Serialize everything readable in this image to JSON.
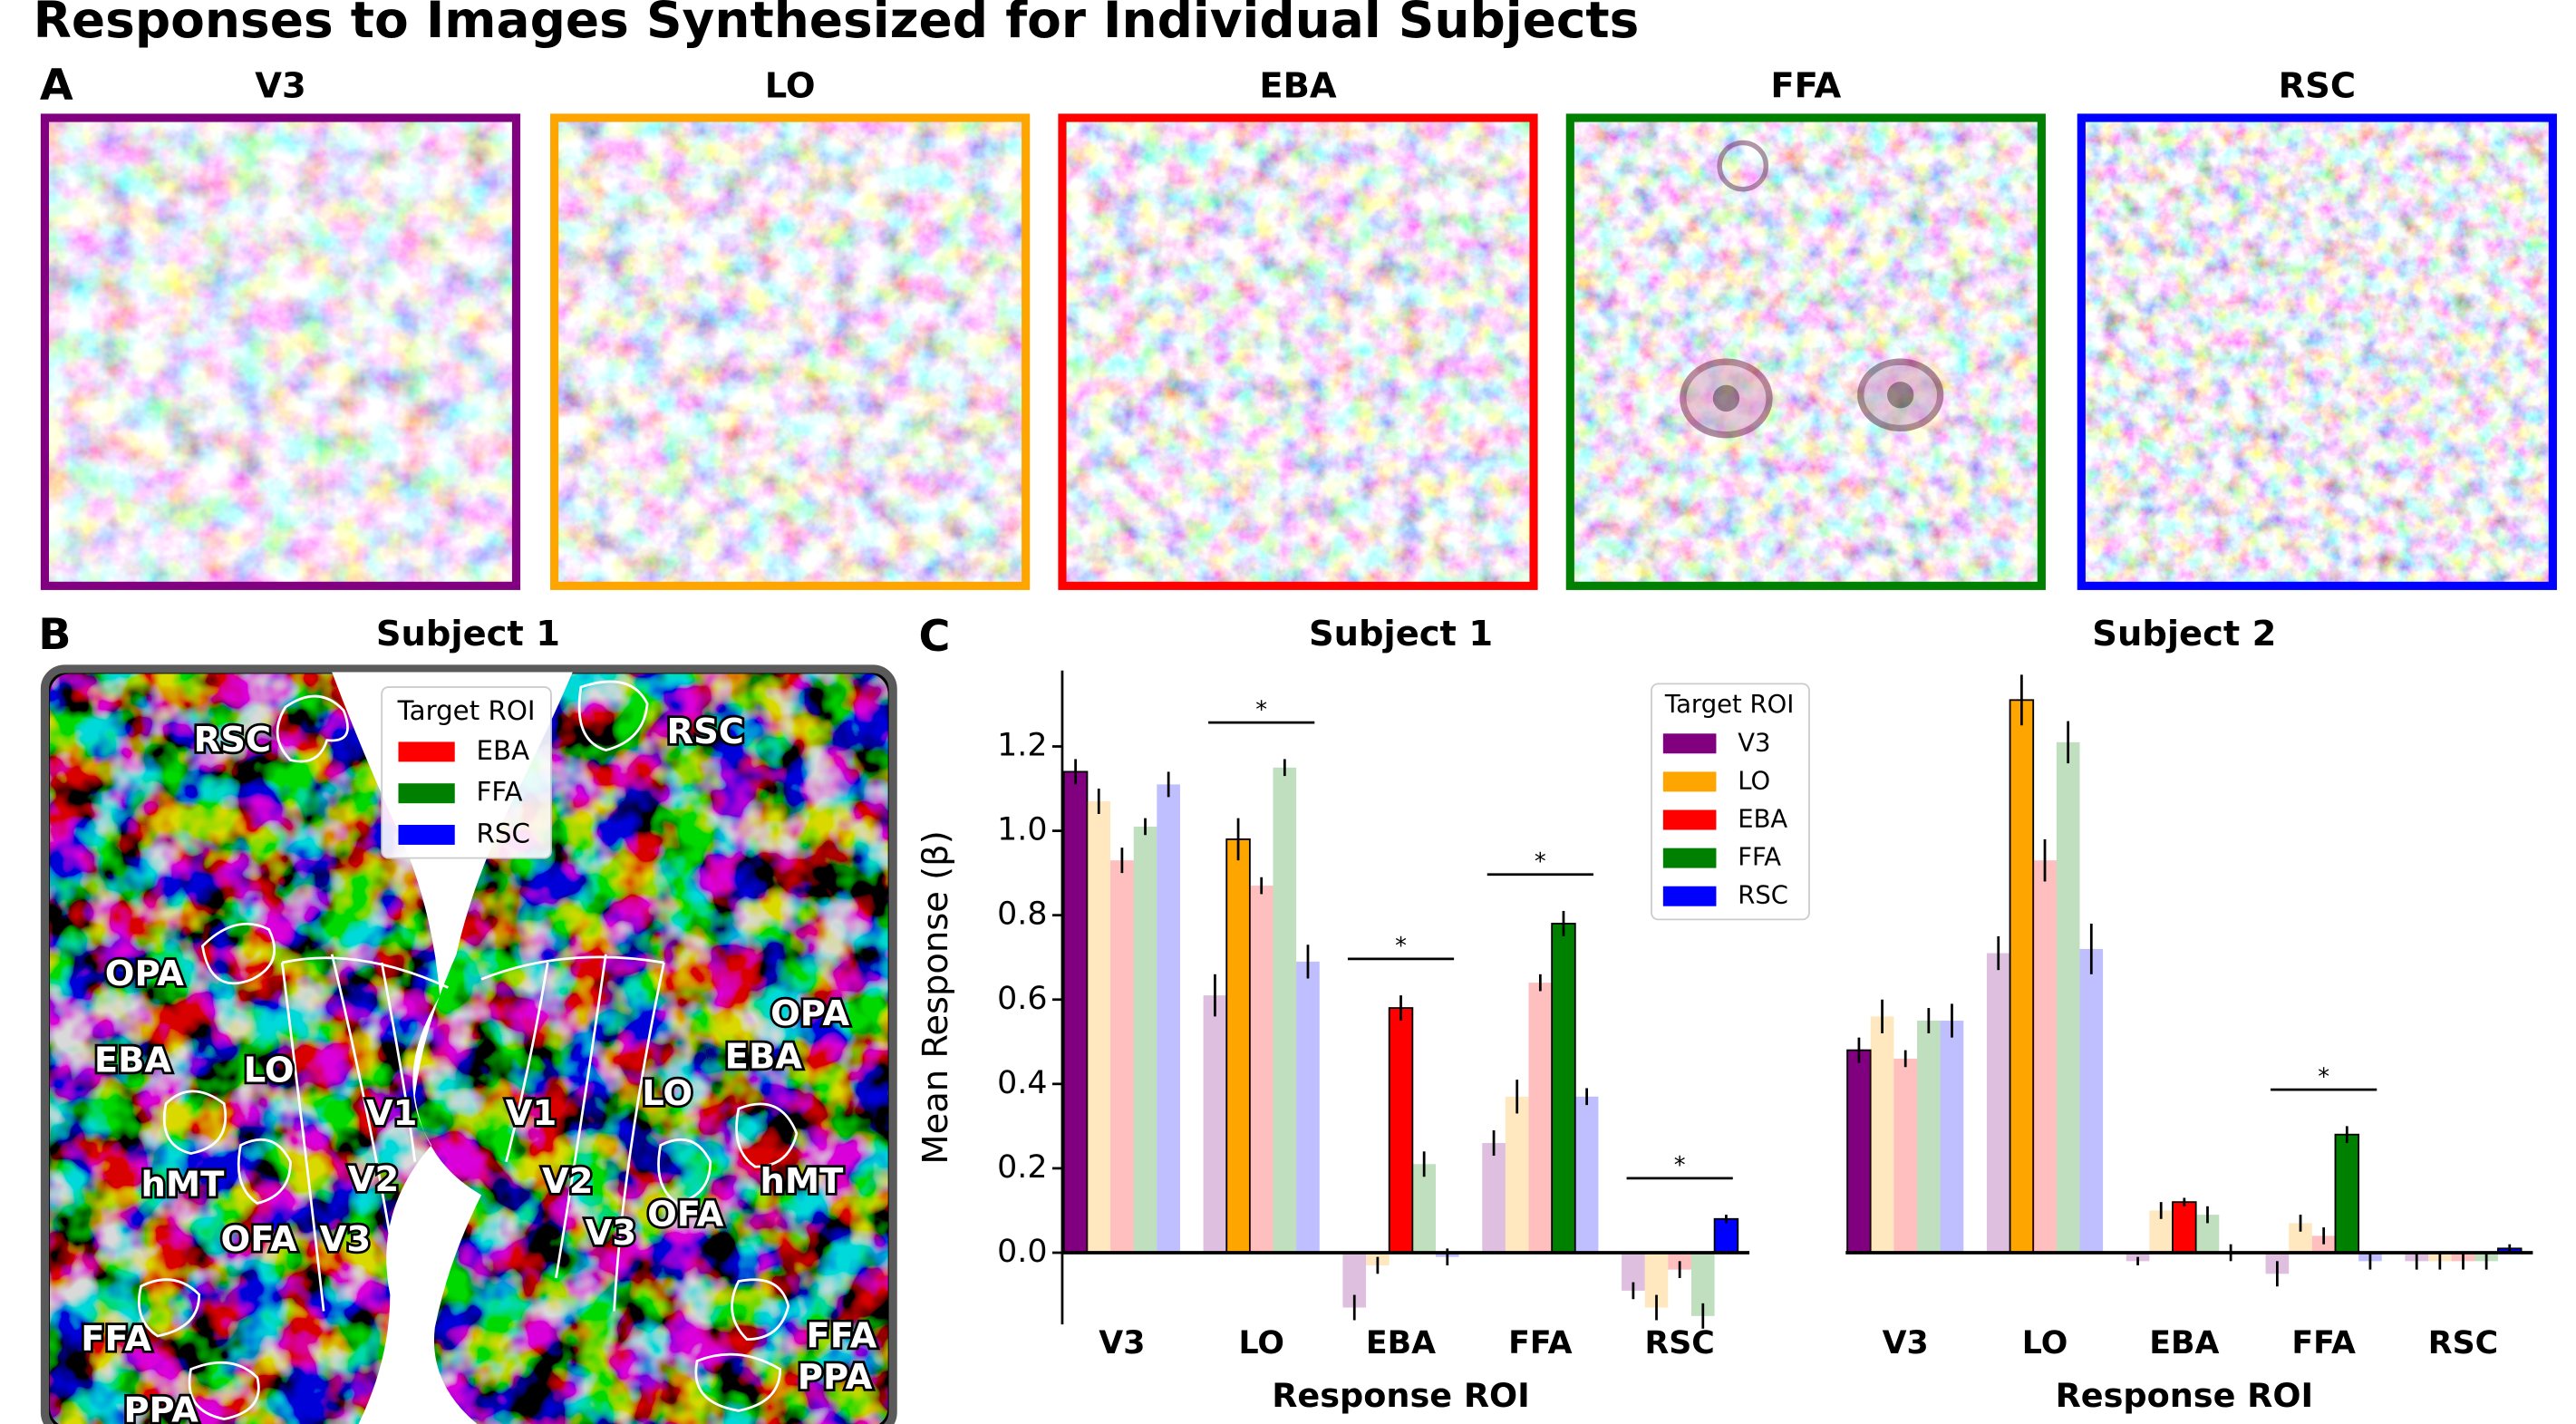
{
  "title": "Responses to Images Synthesized for Individual Subjects",
  "panel_a": {
    "label": "A",
    "images": [
      {
        "title": "V3",
        "color": "#800080"
      },
      {
        "title": "LO",
        "color": "#ffa500"
      },
      {
        "title": "EBA",
        "color": "#ff0000"
      },
      {
        "title": "FFA",
        "color": "#008000"
      },
      {
        "title": "RSC",
        "color": "#0000ff"
      }
    ]
  },
  "panel_b": {
    "label": "B",
    "title": "Subject 1",
    "legend_title": "Target ROI",
    "legend": [
      {
        "name": "EBA",
        "color": "#ff0000"
      },
      {
        "name": "FFA",
        "color": "#008000"
      },
      {
        "name": "RSC",
        "color": "#0000ff"
      }
    ],
    "regions": [
      "RSC",
      "OPA",
      "EBA",
      "LO",
      "hMT",
      "OFA",
      "V1",
      "V2",
      "V3",
      "FFA",
      "PPA",
      "RSC",
      "OPA",
      "EBA",
      "LO",
      "hMT",
      "OFA",
      "V1",
      "V2",
      "V3",
      "FFA",
      "PPA"
    ]
  },
  "panel_c_label": "C",
  "chart_data": [
    {
      "type": "bar",
      "title": "Subject 1",
      "x_label": "Response ROI",
      "y_label": "Mean Response (β)",
      "categories": [
        "V3",
        "LO",
        "EBA",
        "FFA",
        "RSC"
      ],
      "series": [
        {
          "name": "V3",
          "color": "#800080",
          "values": [
            1.14,
            0.61,
            -0.13,
            0.26,
            -0.09
          ],
          "errors": [
            0.03,
            0.05,
            0.03,
            0.03,
            0.02
          ]
        },
        {
          "name": "LO",
          "color": "#ffa500",
          "values": [
            1.07,
            0.98,
            -0.03,
            0.37,
            -0.13
          ],
          "errors": [
            0.03,
            0.05,
            0.02,
            0.04,
            0.03
          ]
        },
        {
          "name": "EBA",
          "color": "#ff0000",
          "values": [
            0.93,
            0.87,
            0.58,
            0.64,
            -0.04
          ],
          "errors": [
            0.03,
            0.02,
            0.03,
            0.02,
            0.02
          ]
        },
        {
          "name": "FFA",
          "color": "#008000",
          "values": [
            1.01,
            1.15,
            0.21,
            0.78,
            -0.15
          ],
          "errors": [
            0.02,
            0.02,
            0.03,
            0.03,
            0.03
          ]
        },
        {
          "name": "RSC",
          "color": "#0000ff",
          "values": [
            1.11,
            0.69,
            -0.01,
            0.37,
            0.08
          ],
          "errors": [
            0.03,
            0.04,
            0.02,
            0.02,
            0.01
          ]
        }
      ],
      "ylim": [
        -0.17,
        1.38
      ],
      "yticks": [
        {
          "value": 0,
          "label": "0.0"
        },
        0.2,
        0.4,
        0.6,
        0.8,
        {
          "value": 1,
          "label": "1.0"
        },
        1.2
      ],
      "legend": "upper right",
      "legend_title": "Target ROI",
      "annotations": [
        {
          "category": "LO",
          "text": "*"
        },
        {
          "category": "EBA",
          "text": "*"
        },
        {
          "category": "FFA",
          "text": "*"
        },
        {
          "category": "RSC",
          "text": "*"
        }
      ]
    },
    {
      "type": "bar",
      "title": "Subject 2",
      "x_label": "Response ROI",
      "categories": [
        "V3",
        "LO",
        "EBA",
        "FFA",
        "RSC"
      ],
      "series": [
        {
          "name": "V3",
          "color": "#800080",
          "values": [
            0.48,
            0.71,
            -0.02,
            -0.05,
            -0.02
          ],
          "errors": [
            0.03,
            0.04,
            0.01,
            0.03,
            0.02
          ]
        },
        {
          "name": "LO",
          "color": "#ffa500",
          "values": [
            0.56,
            1.31,
            0.1,
            0.07,
            -0.02
          ],
          "errors": [
            0.04,
            0.06,
            0.02,
            0.02,
            0.02
          ]
        },
        {
          "name": "EBA",
          "color": "#ff0000",
          "values": [
            0.46,
            0.93,
            0.12,
            0.04,
            -0.02
          ],
          "errors": [
            0.02,
            0.05,
            0.01,
            0.02,
            0.02
          ]
        },
        {
          "name": "FFA",
          "color": "#008000",
          "values": [
            0.55,
            1.21,
            0.09,
            0.28,
            -0.02
          ],
          "errors": [
            0.03,
            0.05,
            0.02,
            0.02,
            0.02
          ]
        },
        {
          "name": "RSC",
          "color": "#0000ff",
          "values": [
            0.55,
            0.72,
            0,
            -0.02,
            0.01
          ],
          "errors": [
            0.04,
            0.06,
            0.02,
            0.02,
            0.01
          ]
        }
      ],
      "ylim": [
        -0.17,
        1.38
      ],
      "annotations": [
        {
          "category": "FFA",
          "text": "*"
        }
      ]
    }
  ]
}
